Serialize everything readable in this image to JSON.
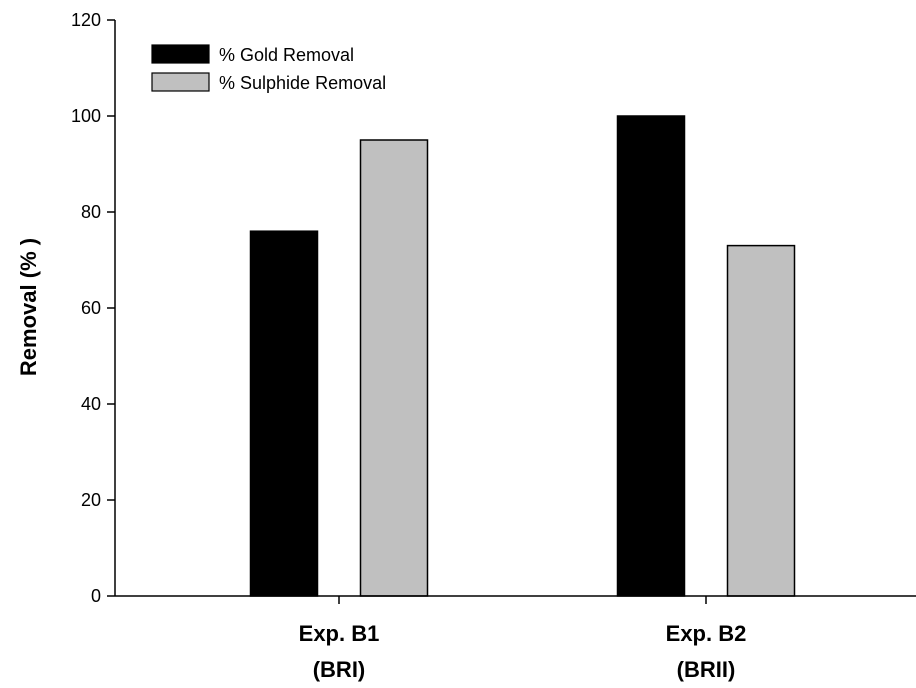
{
  "chart_data": {
    "type": "bar",
    "title": "",
    "xlabel": "",
    "ylabel": "Removal (% )",
    "ylim": [
      0,
      120
    ],
    "yticks": [
      0,
      20,
      40,
      60,
      80,
      100,
      120
    ],
    "grid": false,
    "legend_position": "top-left",
    "categories": [
      {
        "line1": "Exp. B1",
        "line2": "(BRI)"
      },
      {
        "line1": "Exp. B2",
        "line2": "(BRII)"
      }
    ],
    "series": [
      {
        "name": "% Gold Removal",
        "values": [
          76,
          100
        ],
        "color": "#000000"
      },
      {
        "name": "% Sulphide Removal",
        "values": [
          95,
          73
        ],
        "color": "#c0c0c0"
      }
    ]
  }
}
